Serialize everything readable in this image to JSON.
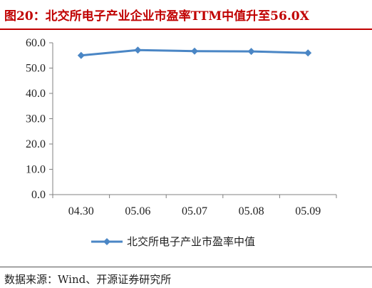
{
  "title": "图20：北交所电子产业企业市盈率TTM中值升至56.0X",
  "source": "数据来源：Wind、开源证券研究所",
  "colors": {
    "title": "#c00000",
    "series": "#4a86c5"
  },
  "chart_data": {
    "type": "line",
    "categories": [
      "04.30",
      "05.06",
      "05.07",
      "05.08",
      "05.09"
    ],
    "series": [
      {
        "name": "北交所电子产业市盈率中值",
        "values": [
          55.0,
          57.1,
          56.7,
          56.6,
          56.0
        ]
      }
    ],
    "y_ticks": [
      "0.0",
      "10.0",
      "20.0",
      "30.0",
      "40.0",
      "50.0",
      "60.0"
    ],
    "ylim": [
      0,
      60
    ],
    "grid": false,
    "legend": "bottom"
  }
}
